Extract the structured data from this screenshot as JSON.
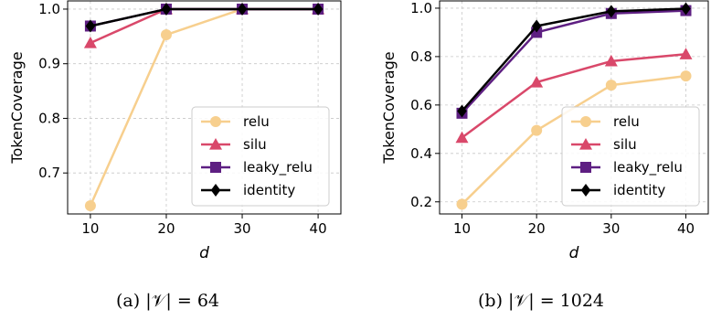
{
  "colors": {
    "relu": "#f7cf8e",
    "silu": "#d9486a",
    "leaky_relu": "#5e1f82",
    "identity": "#000000",
    "grid": "#c8c8c8",
    "frame": "#000000",
    "legend_border": "#cccccc"
  },
  "chart_data": [
    {
      "type": "line",
      "caption": "(a) |𝒱| = 64",
      "xlabel": "d",
      "ylabel": "TokenCoverage",
      "x": [
        10,
        20,
        30,
        40
      ],
      "xlim": [
        7,
        43
      ],
      "ylim": [
        0.625,
        1.015
      ],
      "xticks": [
        10,
        20,
        30,
        40
      ],
      "yticks": [
        0.7,
        0.8,
        0.9,
        1.0
      ],
      "ytick_labels": [
        "0.7",
        "0.8",
        "0.9",
        "1.0"
      ],
      "grid": true,
      "legend_position": "lower right",
      "series": [
        {
          "name": "relu",
          "marker": "circle",
          "values": [
            0.64,
            0.953,
            1.0,
            1.0
          ]
        },
        {
          "name": "silu",
          "marker": "triangle",
          "values": [
            0.938,
            1.0,
            1.0,
            1.0
          ]
        },
        {
          "name": "leaky_relu",
          "marker": "square",
          "values": [
            0.969,
            1.0,
            1.0,
            1.0
          ]
        },
        {
          "name": "identity",
          "marker": "diamond",
          "values": [
            0.969,
            1.0,
            1.0,
            1.0
          ]
        }
      ]
    },
    {
      "type": "line",
      "caption": "(b) |𝒱| = 1024",
      "xlabel": "d",
      "ylabel": "TokenCoverage",
      "x": [
        10,
        20,
        30,
        40
      ],
      "xlim": [
        7,
        43
      ],
      "ylim": [
        0.15,
        1.03
      ],
      "xticks": [
        10,
        20,
        30,
        40
      ],
      "yticks": [
        0.2,
        0.4,
        0.6,
        0.8,
        1.0
      ],
      "ytick_labels": [
        "0.2",
        "0.4",
        "0.6",
        "0.8",
        "1.0"
      ],
      "grid": true,
      "legend_position": "lower right",
      "series": [
        {
          "name": "relu",
          "marker": "circle",
          "values": [
            0.19,
            0.495,
            0.682,
            0.72
          ]
        },
        {
          "name": "silu",
          "marker": "triangle",
          "values": [
            0.465,
            0.694,
            0.781,
            0.81
          ]
        },
        {
          "name": "leaky_relu",
          "marker": "square",
          "values": [
            0.566,
            0.9,
            0.978,
            0.99
          ]
        },
        {
          "name": "identity",
          "marker": "diamond",
          "values": [
            0.575,
            0.926,
            0.987,
            0.998
          ]
        }
      ]
    }
  ]
}
